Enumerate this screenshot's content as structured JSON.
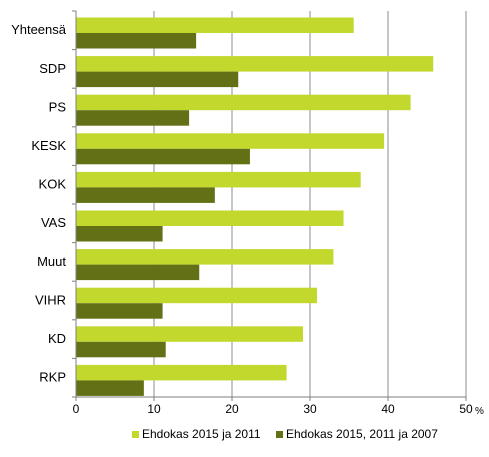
{
  "chart_data": {
    "type": "bar",
    "orientation": "horizontal",
    "categories": [
      "Yhteensä",
      "SDP",
      "PS",
      "KESK",
      "KOK",
      "VAS",
      "Muut",
      "VIHR",
      "KD",
      "RKP"
    ],
    "series": [
      {
        "name": "Ehdokas 2015 ja 2011",
        "color": "#c3d82d",
        "values": [
          35.6,
          45.8,
          42.9,
          39.5,
          36.5,
          34.3,
          33.0,
          30.9,
          29.1,
          27.0
        ]
      },
      {
        "name": "Ehdokas 2015, 2011 ja 2007",
        "color": "#637016",
        "values": [
          15.4,
          20.8,
          14.5,
          22.3,
          17.8,
          11.1,
          15.8,
          11.1,
          11.5,
          8.7
        ]
      }
    ],
    "xlim": [
      0,
      50
    ],
    "x_ticks": [
      "0",
      "10",
      "20",
      "30",
      "40",
      "50"
    ],
    "x_unit": "%",
    "grid": true,
    "legend_position": "bottom"
  }
}
